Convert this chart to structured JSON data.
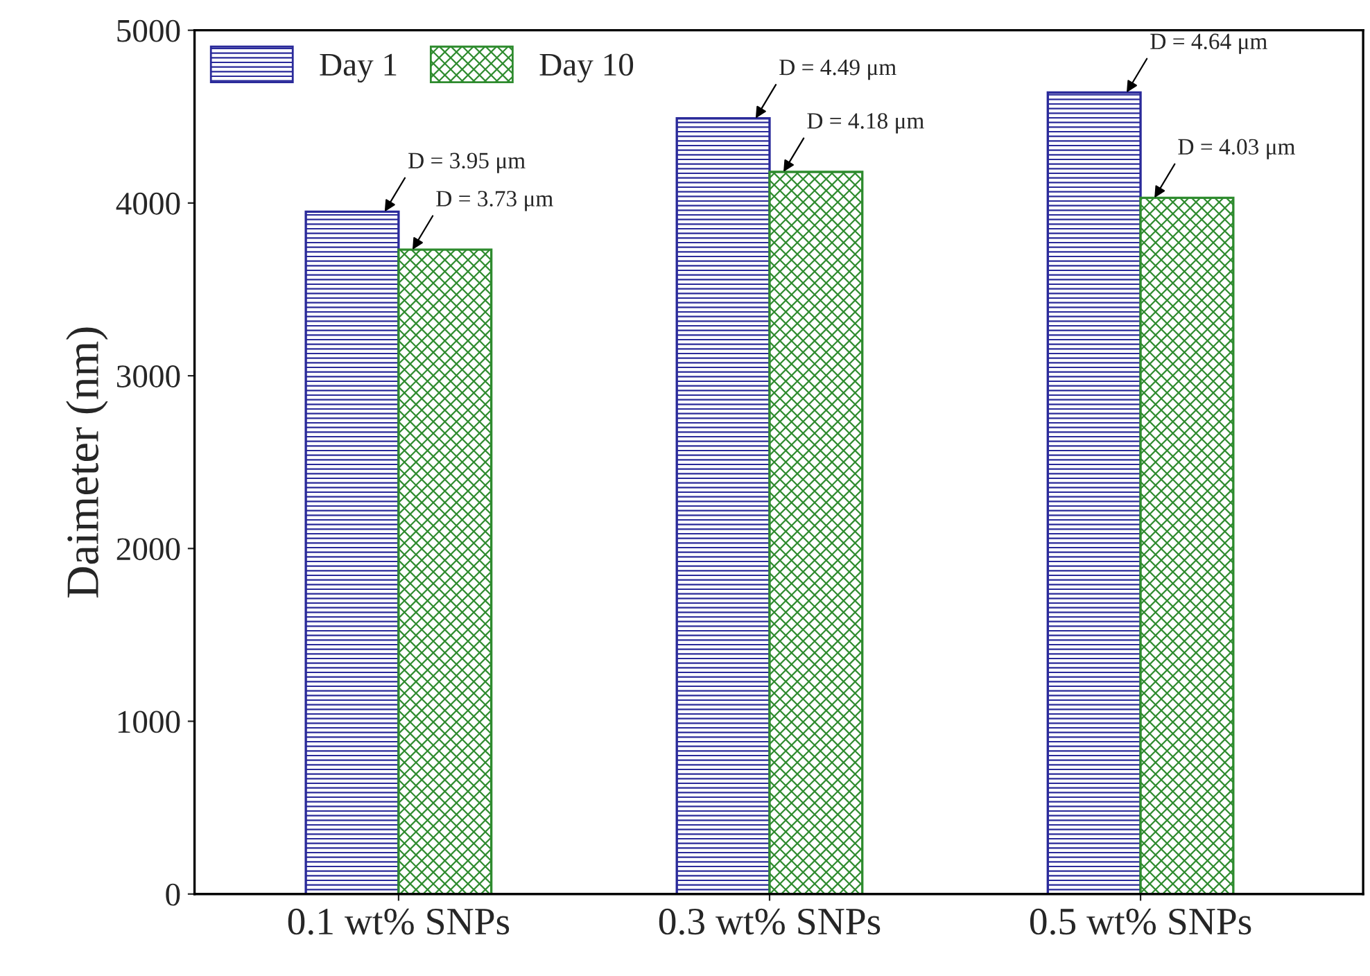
{
  "chart_data": {
    "type": "bar",
    "ylabel": "Daimeter (nm)",
    "categories": [
      "0.1 wt% SNPs",
      "0.3 wt% SNPs",
      "0.5 wt% SNPs"
    ],
    "series": [
      {
        "name": "Day 1",
        "color": "#2a2a9a",
        "values": [
          3950,
          4490,
          4640
        ]
      },
      {
        "name": "Day 10",
        "color": "#2e8b2e",
        "values": [
          3730,
          4180,
          4030
        ]
      }
    ],
    "ylim": [
      0,
      5000
    ],
    "yticks": [
      0,
      1000,
      2000,
      3000,
      4000,
      5000
    ],
    "annotations": [
      {
        "text": "D = 3.95 μm",
        "x": "0.1 wt% SNPs",
        "y": 3950
      },
      {
        "text": "D = 3.73 μm",
        "x": "0.1 wt% SNPs",
        "y": 3730
      },
      {
        "text": "D = 4.49 μm",
        "x": "0.3 wt% SNPs",
        "y": 4490
      },
      {
        "text": "D = 4.18 μm",
        "x": "0.3 wt% SNPs",
        "y": 4180
      },
      {
        "text": "D = 4.64 μm",
        "x": "0.5 wt% SNPs",
        "y": 4640
      },
      {
        "text": "D = 4.03 μm",
        "x": "0.5 wt% SNPs",
        "y": 4030
      }
    ],
    "grid": false,
    "legend": "top left"
  }
}
